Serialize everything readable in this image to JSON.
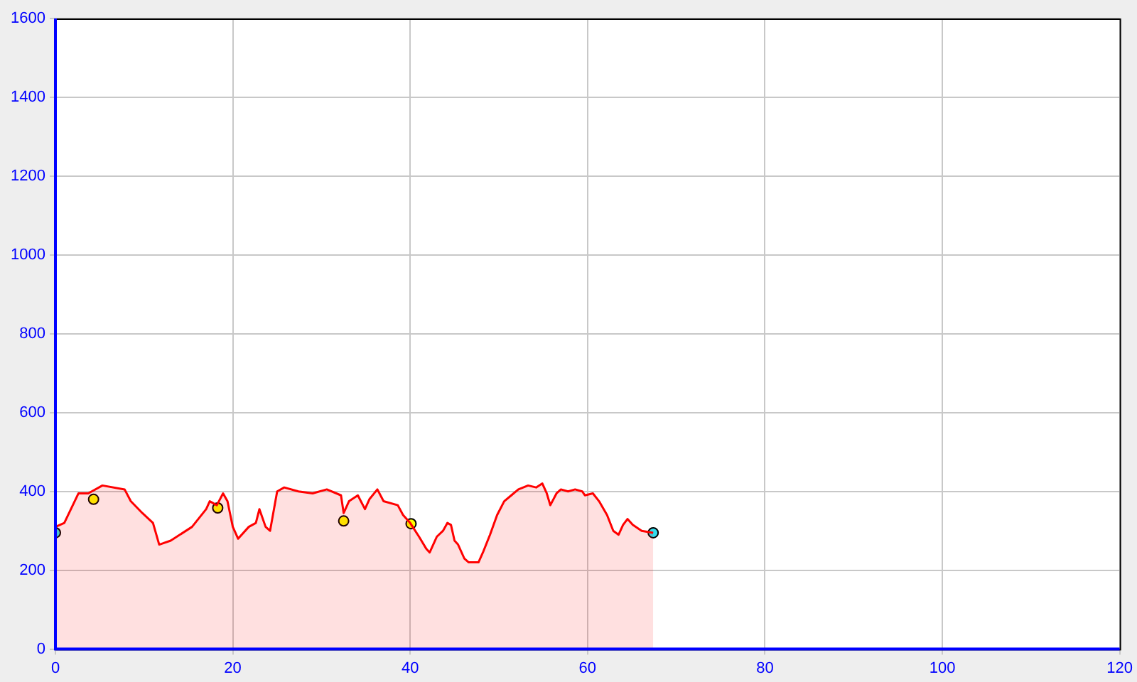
{
  "chart_data": {
    "type": "area",
    "xlim": [
      0,
      120
    ],
    "ylim": [
      0,
      1600
    ],
    "xticks": [
      0,
      20,
      40,
      60,
      80,
      100,
      120
    ],
    "yticks": [
      0,
      200,
      400,
      600,
      800,
      1000,
      1200,
      1400,
      1600
    ],
    "grid": true,
    "series": [
      {
        "color": "#ff0000",
        "x": [
          0,
          1.0,
          2.6,
          3.7,
          5.3,
          7.8,
          8.5,
          9.8,
          11.0,
          11.7,
          13.0,
          15.4,
          17.0,
          17.4,
          18.2,
          18.9,
          19.4,
          20.0,
          20.6,
          21.8,
          22.6,
          23.0,
          23.7,
          24.2,
          25.0,
          25.8,
          27.4,
          29.0,
          30.6,
          32.2,
          32.5,
          33.1,
          34.1,
          34.9,
          35.4,
          36.3,
          37.0,
          38.6,
          39.2,
          40.0,
          41.0,
          41.8,
          42.2,
          43.0,
          43.7,
          44.2,
          44.6,
          45.0,
          45.4,
          46.1,
          46.6,
          47.7,
          48.2,
          49.0,
          49.8,
          50.6,
          51.4,
          52.2,
          53.3,
          54.2,
          54.9,
          55.4,
          55.8,
          56.5,
          57.0,
          57.8,
          58.6,
          59.4,
          59.7,
          60.6,
          61.3,
          62.2,
          62.9,
          63.5,
          64.0,
          64.5,
          65.1,
          66.1,
          67.4
        ],
        "values": [
          310,
          320,
          395,
          395,
          415,
          405,
          375,
          345,
          320,
          265,
          275,
          310,
          355,
          375,
          365,
          395,
          375,
          310,
          280,
          310,
          320,
          355,
          310,
          300,
          400,
          410,
          400,
          395,
          405,
          390,
          345,
          375,
          390,
          355,
          380,
          405,
          375,
          365,
          340,
          320,
          285,
          255,
          245,
          285,
          300,
          320,
          315,
          275,
          265,
          230,
          220,
          220,
          245,
          290,
          340,
          375,
          390,
          405,
          415,
          410,
          420,
          395,
          365,
          395,
          405,
          400,
          405,
          400,
          390,
          395,
          375,
          340,
          300,
          290,
          315,
          330,
          315,
          300,
          295
        ]
      },
      {
        "type": "scatter",
        "marker": "circle",
        "color": "#33ddee",
        "x": [
          0,
          67.4
        ],
        "values": [
          295,
          295
        ]
      },
      {
        "type": "scatter",
        "marker": "circle",
        "color": "#ffff00",
        "x": [
          4.3,
          18.3,
          32.5,
          40.1
        ],
        "values": [
          380,
          358,
          325,
          318
        ]
      }
    ]
  }
}
